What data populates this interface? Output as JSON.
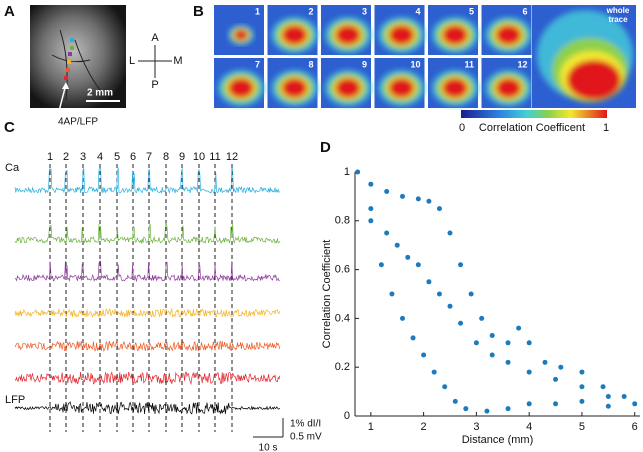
{
  "panels": {
    "A": {
      "label": "A",
      "scale_bar": "2 mm",
      "injection_label": "4AP/LFP",
      "compass": {
        "up": "A",
        "down": "P",
        "left": "L",
        "right": "M"
      }
    },
    "B": {
      "label": "B",
      "frames": [
        "1",
        "2",
        "3",
        "4",
        "5",
        "6",
        "7",
        "8",
        "9",
        "10",
        "11",
        "12"
      ],
      "whole_trace": [
        "whole",
        "trace"
      ],
      "colorbar": {
        "min": "0",
        "title": "Correlation Coefficent",
        "max": "1"
      }
    },
    "C": {
      "label": "C",
      "ca_label": "Ca",
      "lfp_label": "LFP",
      "markers": [
        "1",
        "2",
        "3",
        "4",
        "5",
        "6",
        "7",
        "8",
        "9",
        "10",
        "11",
        "12"
      ],
      "scale_ca": "1% dI/I",
      "scale_lfp": "0.5 mV",
      "scale_time": "10 s",
      "trace_colors": [
        "#29aee0",
        "#6cb33f",
        "#8e3b9c",
        "#f5b323",
        "#ef5a24",
        "#e1262f",
        "#000000"
      ]
    },
    "D": {
      "label": "D"
    }
  },
  "chart_data": {
    "type": "scatter",
    "xlabel": "Distance (mm)",
    "ylabel": "Correlation Coefficient",
    "color": "#1d7bbd",
    "x": [
      0.75,
      1.0,
      1.3,
      1.6,
      1.9,
      2.1,
      2.3,
      2.5,
      2.7,
      2.9,
      3.1,
      3.3,
      3.6,
      3.8,
      4.0,
      4.3,
      4.6,
      5.0,
      5.4,
      5.8,
      6.0,
      1.0,
      1.3,
      1.5,
      1.7,
      1.9,
      2.1,
      2.3,
      2.5,
      2.7,
      3.0,
      3.3,
      3.6,
      4.0,
      4.5,
      5.0,
      5.5,
      1.0,
      1.2,
      1.4,
      1.6,
      1.8,
      2.0,
      2.2,
      2.4,
      2.6,
      2.8,
      3.2,
      3.6,
      4.0,
      4.5,
      5.0,
      5.5
    ],
    "values": [
      1,
      0.95,
      0.92,
      0.9,
      0.89,
      0.88,
      0.85,
      0.75,
      0.62,
      0.5,
      0.4,
      0.33,
      0.3,
      0.36,
      0.3,
      0.22,
      0.2,
      0.18,
      0.12,
      0.08,
      0.05,
      0.85,
      0.75,
      0.7,
      0.65,
      0.62,
      0.55,
      0.5,
      0.45,
      0.38,
      0.3,
      0.25,
      0.22,
      0.18,
      0.15,
      0.12,
      0.08,
      0.8,
      0.62,
      0.5,
      0.4,
      0.32,
      0.25,
      0.18,
      0.12,
      0.06,
      0.03,
      0.02,
      0.03,
      0.05,
      0.05,
      0.06,
      0.04
    ],
    "xlim": [
      0.7,
      6.1
    ],
    "ylim": [
      0,
      1
    ],
    "xticks": [
      1,
      2,
      3,
      4,
      5,
      6
    ],
    "yticks": [
      0,
      0.2,
      0.4,
      0.6,
      0.8,
      1
    ]
  }
}
